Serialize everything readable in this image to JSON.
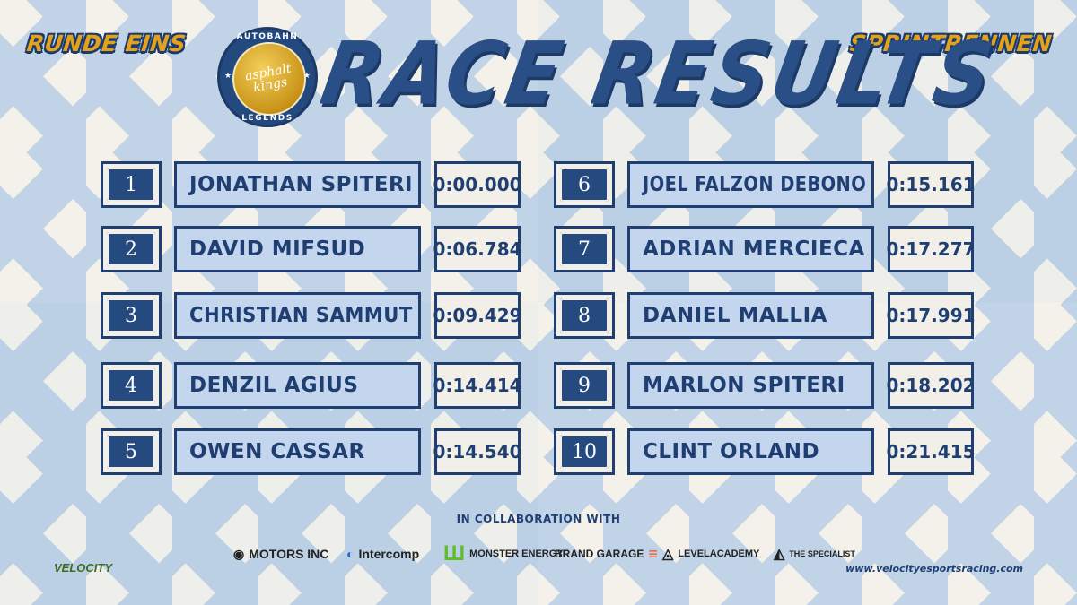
{
  "header": {
    "left_label": "RUNDE EINS",
    "right_label": "SPRINTRENNEN",
    "title": "RACE RESULTS"
  },
  "badge": {
    "top_text": "AUTOBAHN",
    "script_text": "asphalt kings",
    "bottom_text": "LEGENDS"
  },
  "results": [
    {
      "pos": "1",
      "name": "JONATHAN SPITERI",
      "time": "0:00.000"
    },
    {
      "pos": "2",
      "name": "DAVID MIFSUD",
      "time": "0:06.784"
    },
    {
      "pos": "3",
      "name": "CHRISTIAN SAMMUT",
      "time": "0:09.429"
    },
    {
      "pos": "4",
      "name": "DENZIL AGIUS",
      "time": "0:14.414"
    },
    {
      "pos": "5",
      "name": "OWEN CASSAR",
      "time": "0:14.540"
    },
    {
      "pos": "6",
      "name": "JOEL FALZON DEBONO",
      "time": "0:15.161"
    },
    {
      "pos": "7",
      "name": "ADRIAN MERCIECA",
      "time": "0:17.277"
    },
    {
      "pos": "8",
      "name": "DANIEL MALLIA",
      "time": "0:17.991"
    },
    {
      "pos": "9",
      "name": "MARLON SPITERI",
      "time": "0:18.202"
    },
    {
      "pos": "10",
      "name": "CLINT ORLAND",
      "time": "0:21.415"
    }
  ],
  "footer": {
    "collab_text": "IN COLLABORATION WITH",
    "sponsors": [
      "VELOCITY",
      "MOTORS INC",
      "Intercomp",
      "MONSTER ENERGY",
      "BRAND GARAGE",
      "LEVELACADEMY",
      "THE SPECIALIST"
    ],
    "url": "www.velocityesportsracing.com"
  },
  "colors": {
    "navy": "#1f3f73",
    "gold": "#e3a21a",
    "cell_blue": "#c4d6ee"
  }
}
